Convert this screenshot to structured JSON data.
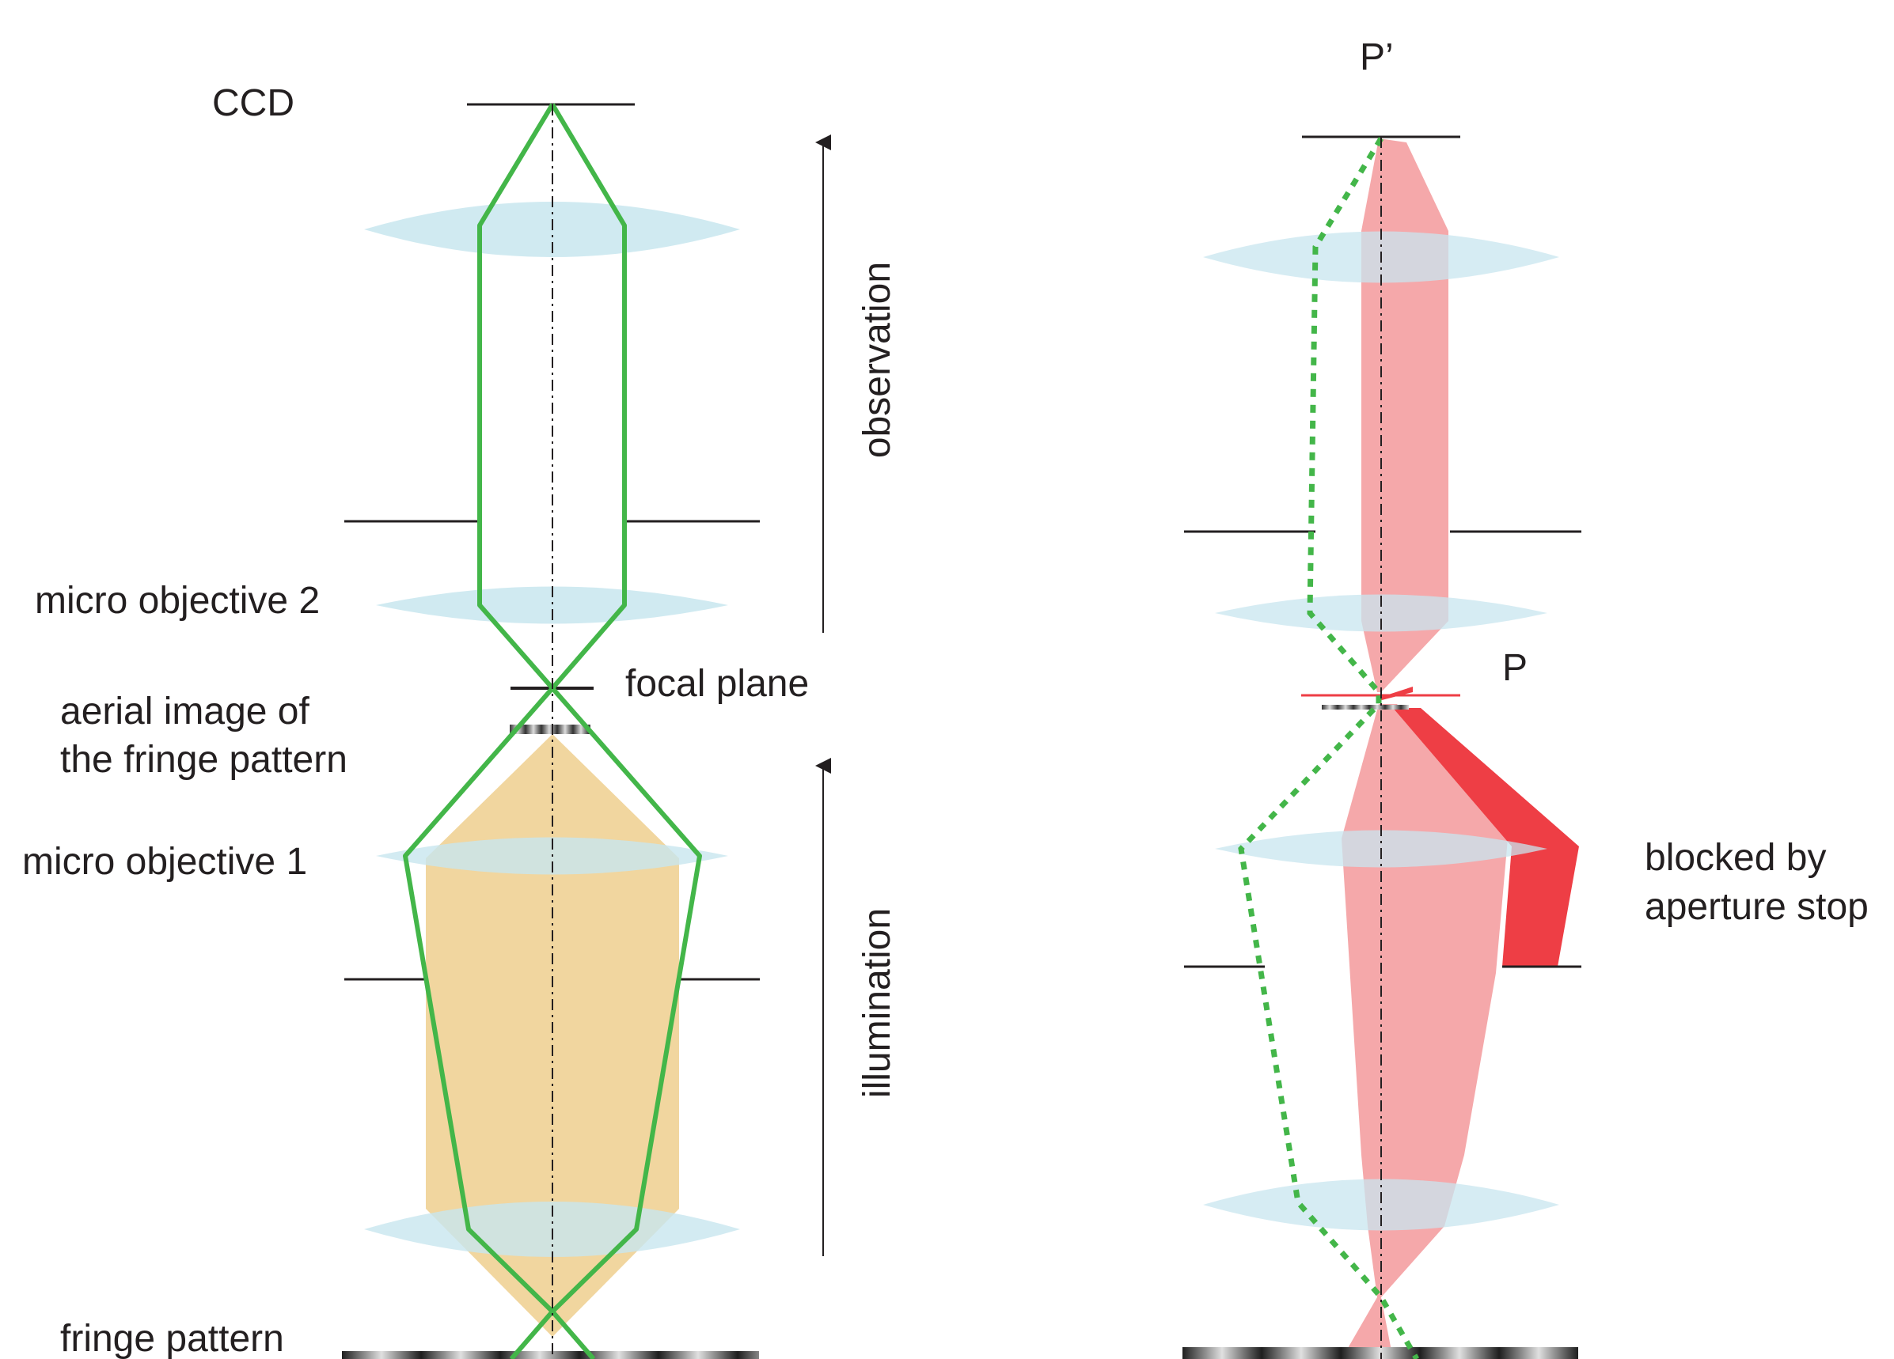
{
  "labels": {
    "ccd": "CCD",
    "micro_objective_2": "micro objective 2",
    "focal_plane": "focal plane",
    "aerial_image_line1": "aerial image of",
    "aerial_image_line2": "the fringe pattern",
    "micro_objective_1": "micro objective 1",
    "fringe_pattern": "fringe pattern",
    "observation": "observation",
    "illumination": "illumination",
    "p_prime": "P’",
    "p": "P",
    "blocked_line1": "blocked by",
    "blocked_line2": "aperture stop"
  },
  "colors": {
    "ray_green": "#43b649",
    "illumination_beam": "#eecf8e",
    "ray_bundle": "#f4a3a5",
    "blocked_rays": "#ee3e45",
    "lens": "#c8e6ef",
    "stop": "#231f20"
  }
}
